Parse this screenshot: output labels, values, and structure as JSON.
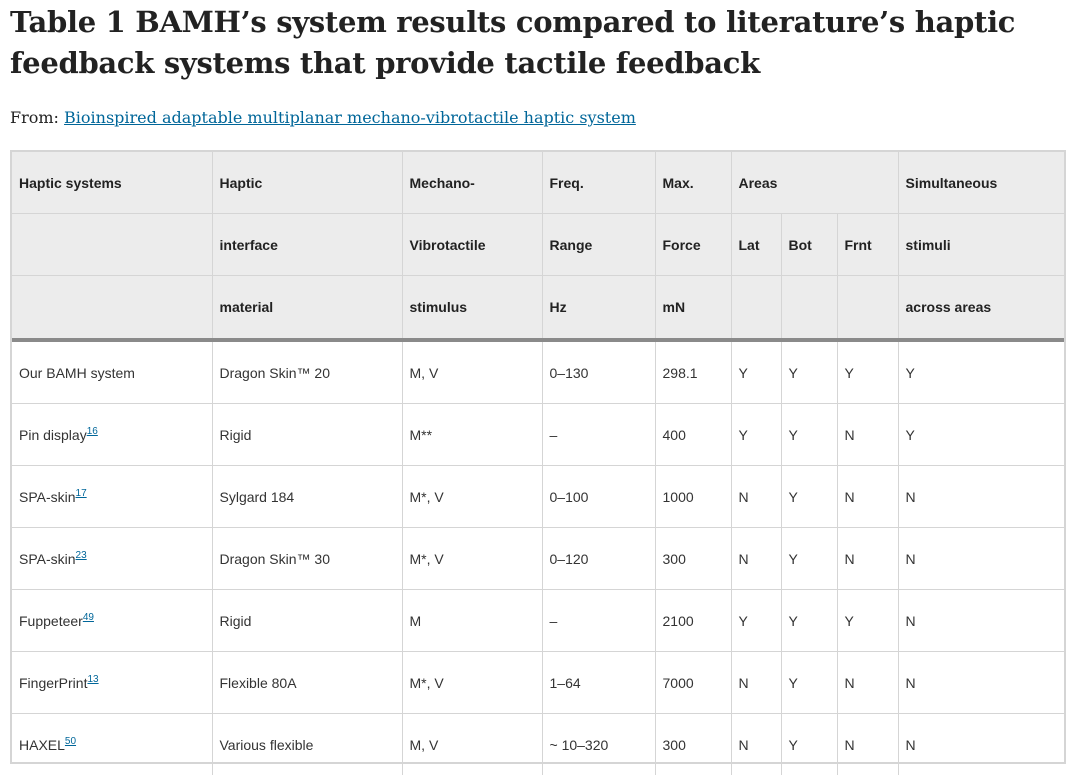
{
  "title": "Table 1 BAMH’s system results compared to literature’s haptic feedback systems that provide tactile feedback",
  "from": {
    "prefix": "From: ",
    "link_text": "Bioinspired adaptable multiplanar mechano-vibrotactile haptic system",
    "link_color": "#006699"
  },
  "table": {
    "header_rows": [
      [
        "Haptic systems",
        "Haptic",
        "Mechano-",
        "Freq.",
        "Max.",
        "Areas",
        "",
        "",
        "Simultaneous"
      ],
      [
        "",
        "interface",
        "Vibrotactile",
        "Range",
        "Force",
        "Lat",
        "Bot",
        "Frnt",
        "stimuli"
      ],
      [
        "",
        "material",
        "stimulus",
        "Hz",
        "mN",
        "",
        "",
        "",
        "across areas"
      ]
    ],
    "rows": [
      {
        "system": "Our BAMH system",
        "ref": "",
        "material": "Dragon Skin™ 20",
        "stimulus": "M, V",
        "freq": "0–130",
        "force": "298.1",
        "lat": "Y",
        "bot": "Y",
        "frnt": "Y",
        "simul": "Y"
      },
      {
        "system": "Pin display",
        "ref": "16",
        "material": "Rigid",
        "stimulus": "M**",
        "freq": "–",
        "force": "400",
        "lat": "Y",
        "bot": "Y",
        "frnt": "N",
        "simul": "Y"
      },
      {
        "system": "SPA-skin",
        "ref": "17",
        "material": "Sylgard 184",
        "stimulus": "M*, V",
        "freq": "0–100",
        "force": "1000",
        "lat": "N",
        "bot": "Y",
        "frnt": "N",
        "simul": "N"
      },
      {
        "system": "SPA-skin",
        "ref": "23",
        "material": "Dragon Skin™ 30",
        "stimulus": "M*, V",
        "freq": "0–120",
        "force": "300",
        "lat": "N",
        "bot": "Y",
        "frnt": "N",
        "simul": "N"
      },
      {
        "system": "Fuppeteer",
        "ref": "49",
        "material": "Rigid",
        "stimulus": "M",
        "freq": "–",
        "force": "2100",
        "lat": "Y",
        "bot": "Y",
        "frnt": "Y",
        "simul": "N"
      },
      {
        "system": "FingerPrint",
        "ref": "13",
        "material": "Flexible 80A",
        "stimulus": "M*, V",
        "freq": "1–64",
        "force": "7000",
        "lat": "N",
        "bot": "Y",
        "frnt": "N",
        "simul": "N"
      },
      {
        "system": "HAXEL",
        "ref": "50",
        "material": "Various flexible",
        "stimulus": "M, V",
        "freq": "~ 10–320",
        "force": "300",
        "lat": "N",
        "bot": "Y",
        "frnt": "N",
        "simul": "N"
      }
    ]
  }
}
